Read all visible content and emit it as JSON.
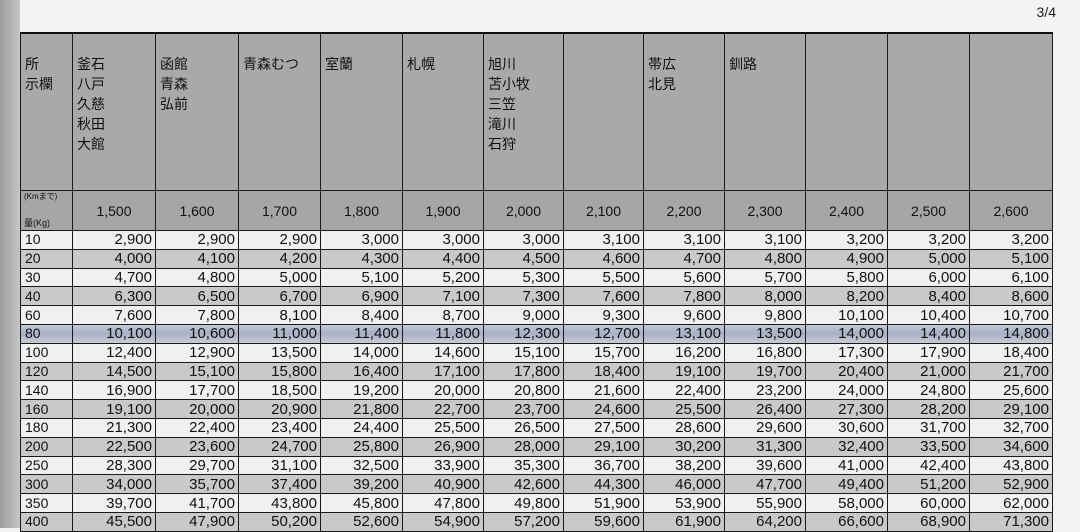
{
  "page_number": "3/4",
  "header": {
    "corner_top": "所\n示欄",
    "corner_dist": "(Kmまで)",
    "corner_weight": "量(Kg)",
    "places": [
      "釜石\n八戸\n久慈\n秋田\n大館",
      "函館\n青森\n弘前",
      "青森むつ",
      "室蘭",
      "札幌",
      "旭川\n苫小牧\n三笠\n滝川\n石狩",
      "",
      "帯広\n北見",
      "釧路",
      "",
      "",
      ""
    ],
    "distances": [
      "1,500",
      "1,600",
      "1,700",
      "1,800",
      "1,900",
      "2,000",
      "2,100",
      "2,200",
      "2,300",
      "2,400",
      "2,500",
      "2,600"
    ]
  },
  "highlighted_row": "80",
  "rows": [
    {
      "weight": "10",
      "values": [
        "2,900",
        "2,900",
        "2,900",
        "3,000",
        "3,000",
        "3,000",
        "3,100",
        "3,100",
        "3,100",
        "3,200",
        "3,200",
        "3,200"
      ]
    },
    {
      "weight": "20",
      "values": [
        "4,000",
        "4,100",
        "4,200",
        "4,300",
        "4,400",
        "4,500",
        "4,600",
        "4,700",
        "4,800",
        "4,900",
        "5,000",
        "5,100"
      ]
    },
    {
      "weight": "30",
      "values": [
        "4,700",
        "4,800",
        "5,000",
        "5,100",
        "5,200",
        "5,300",
        "5,500",
        "5,600",
        "5,700",
        "5,800",
        "6,000",
        "6,100"
      ]
    },
    {
      "weight": "40",
      "values": [
        "6,300",
        "6,500",
        "6,700",
        "6,900",
        "7,100",
        "7,300",
        "7,600",
        "7,800",
        "8,000",
        "8,200",
        "8,400",
        "8,600"
      ]
    },
    {
      "weight": "60",
      "values": [
        "7,600",
        "7,800",
        "8,100",
        "8,400",
        "8,700",
        "9,000",
        "9,300",
        "9,600",
        "9,800",
        "10,100",
        "10,400",
        "10,700"
      ]
    },
    {
      "weight": "80",
      "values": [
        "10,100",
        "10,600",
        "11,000",
        "11,400",
        "11,800",
        "12,300",
        "12,700",
        "13,100",
        "13,500",
        "14,000",
        "14,400",
        "14,800"
      ]
    },
    {
      "weight": "100",
      "values": [
        "12,400",
        "12,900",
        "13,500",
        "14,000",
        "14,600",
        "15,100",
        "15,700",
        "16,200",
        "16,800",
        "17,300",
        "17,900",
        "18,400"
      ]
    },
    {
      "weight": "120",
      "values": [
        "14,500",
        "15,100",
        "15,800",
        "16,400",
        "17,100",
        "17,800",
        "18,400",
        "19,100",
        "19,700",
        "20,400",
        "21,000",
        "21,700"
      ]
    },
    {
      "weight": "140",
      "values": [
        "16,900",
        "17,700",
        "18,500",
        "19,200",
        "20,000",
        "20,800",
        "21,600",
        "22,400",
        "23,200",
        "24,000",
        "24,800",
        "25,600"
      ]
    },
    {
      "weight": "160",
      "values": [
        "19,100",
        "20,000",
        "20,900",
        "21,800",
        "22,700",
        "23,700",
        "24,600",
        "25,500",
        "26,400",
        "27,300",
        "28,200",
        "29,100"
      ]
    },
    {
      "weight": "180",
      "values": [
        "21,300",
        "22,400",
        "23,400",
        "24,400",
        "25,500",
        "26,500",
        "27,500",
        "28,600",
        "29,600",
        "30,600",
        "31,700",
        "32,700"
      ]
    },
    {
      "weight": "200",
      "values": [
        "22,500",
        "23,600",
        "24,700",
        "25,800",
        "26,900",
        "28,000",
        "29,100",
        "30,200",
        "31,300",
        "32,400",
        "33,500",
        "34,600"
      ]
    },
    {
      "weight": "250",
      "values": [
        "28,300",
        "29,700",
        "31,100",
        "32,500",
        "33,900",
        "35,300",
        "36,700",
        "38,200",
        "39,600",
        "41,000",
        "42,400",
        "43,800"
      ]
    },
    {
      "weight": "300",
      "values": [
        "34,000",
        "35,700",
        "37,400",
        "39,200",
        "40,900",
        "42,600",
        "44,300",
        "46,000",
        "47,700",
        "49,400",
        "51,200",
        "52,900"
      ]
    },
    {
      "weight": "350",
      "values": [
        "39,700",
        "41,700",
        "43,800",
        "45,800",
        "47,800",
        "49,800",
        "51,900",
        "53,900",
        "55,900",
        "58,000",
        "60,000",
        "62,000"
      ]
    },
    {
      "weight": "400",
      "values": [
        "45,500",
        "47,900",
        "50,200",
        "52,600",
        "54,900",
        "57,200",
        "59,600",
        "61,900",
        "64,200",
        "66,600",
        "68,900",
        "71,300"
      ]
    }
  ]
}
